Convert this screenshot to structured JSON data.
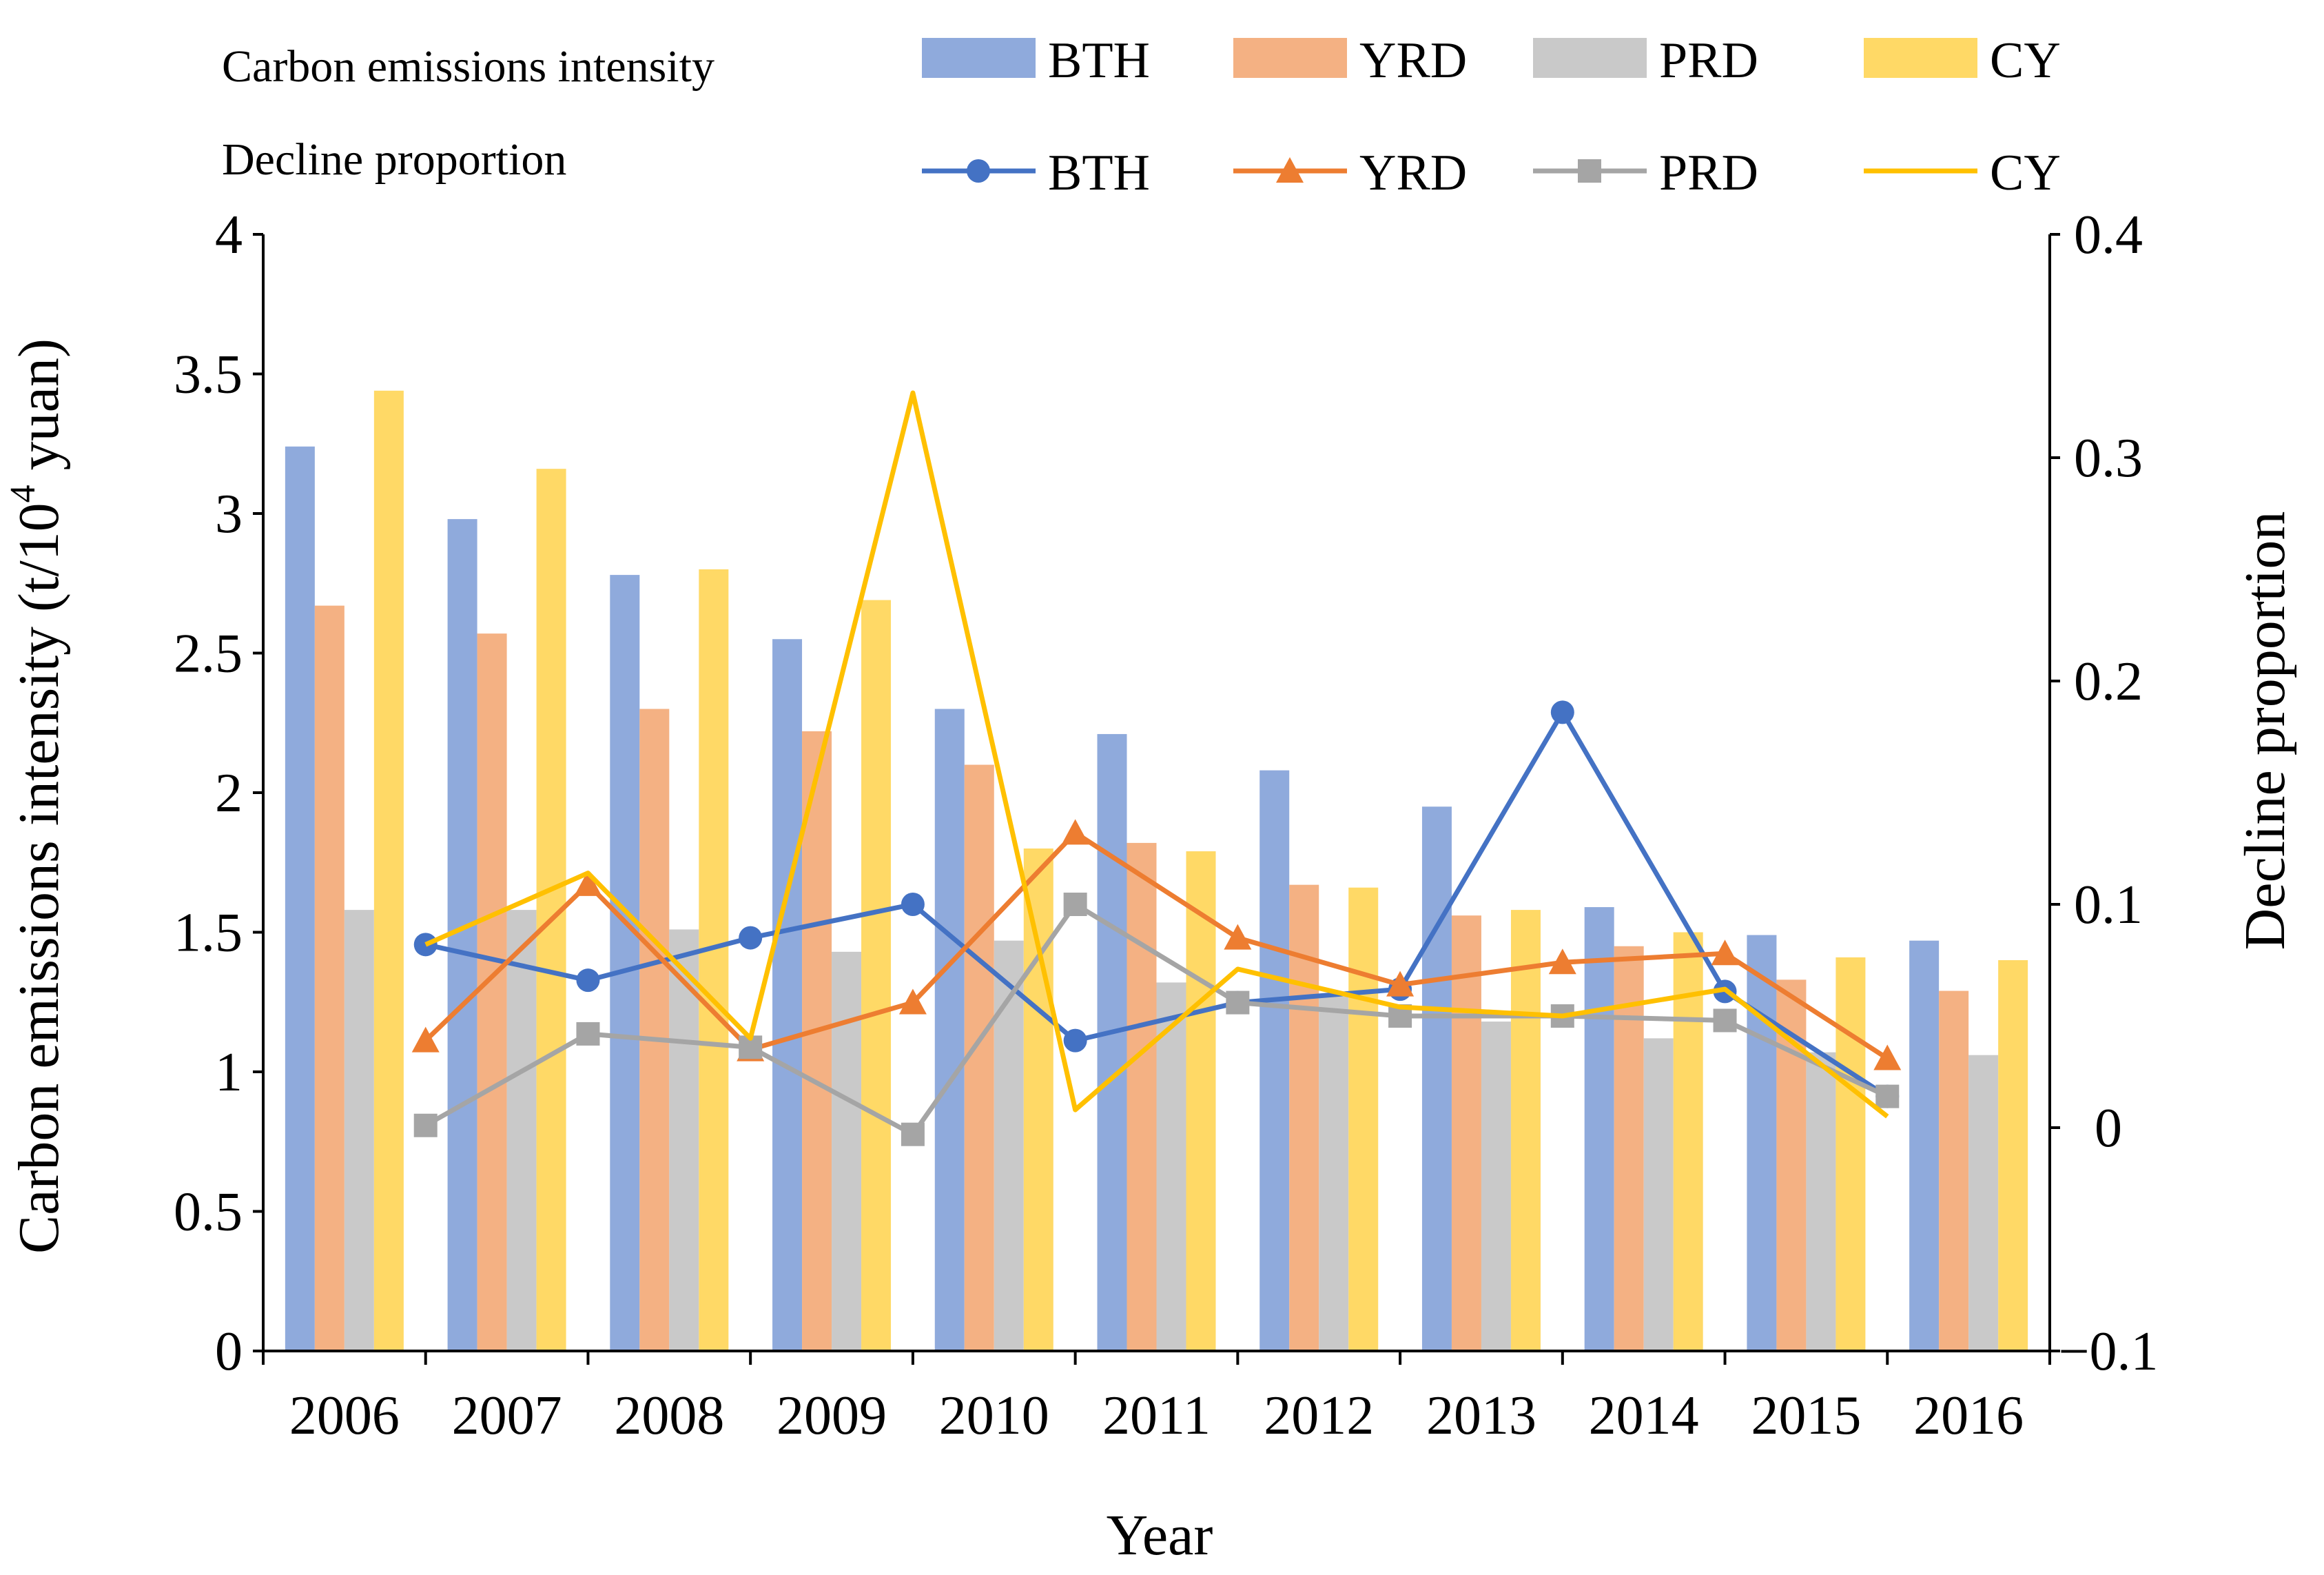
{
  "chart_data": {
    "type": "bar",
    "categories": [
      "2006",
      "2007",
      "2008",
      "2009",
      "2010",
      "2011",
      "2012",
      "2013",
      "2014",
      "2015",
      "2016"
    ],
    "xlabel": "Year",
    "ylabel_main": "Carbon emissions intensity (t/10",
    "ylabel_sup": "4",
    "ylabel_tail": " yuan)",
    "y2label": "Decline proportion",
    "ylim": [
      0,
      4
    ],
    "yticks": [
      "0",
      "0.5",
      "1",
      "1.5",
      "2",
      "2.5",
      "3",
      "3.5",
      "4"
    ],
    "y2lim": [
      -0.1,
      0.4
    ],
    "y2ticks": [
      "−0.1",
      "0",
      "0.1",
      "0.2",
      "0.3",
      "0.4"
    ],
    "legend": {
      "bar_group_title": "Carbon emissions intensity",
      "line_group_title": "Decline proportion",
      "placement": "top"
    },
    "bar_series": [
      {
        "name": "BTH",
        "color": "#8FAADC",
        "values": [
          3.24,
          2.98,
          2.78,
          2.55,
          2.3,
          2.21,
          2.08,
          1.95,
          1.59,
          1.49,
          1.47
        ]
      },
      {
        "name": "YRD",
        "color": "#F4B183",
        "values": [
          2.67,
          2.57,
          2.3,
          2.22,
          2.1,
          1.82,
          1.67,
          1.56,
          1.45,
          1.33,
          1.29
        ]
      },
      {
        "name": "PRD",
        "color": "#C9C9C9",
        "values": [
          1.58,
          1.58,
          1.51,
          1.43,
          1.47,
          1.32,
          1.27,
          1.18,
          1.12,
          1.07,
          1.06
        ]
      },
      {
        "name": "CY",
        "color": "#FFD966",
        "values": [
          3.44,
          3.16,
          2.8,
          2.69,
          1.8,
          1.79,
          1.66,
          1.58,
          1.5,
          1.41,
          1.4
        ]
      }
    ],
    "line_series": [
      {
        "name": "BTH",
        "color": "#4472C4",
        "marker": "circle",
        "x": [
          "2007",
          "2008",
          "2009",
          "2010",
          "2011",
          "2012",
          "2013",
          "2014",
          "2015",
          "2016"
        ],
        "values": [
          0.082,
          0.066,
          0.085,
          0.1,
          0.039,
          0.056,
          0.062,
          0.186,
          0.061,
          0.014
        ]
      },
      {
        "name": "YRD",
        "color": "#ED7D31",
        "marker": "triangle",
        "x": [
          "2007",
          "2008",
          "2009",
          "2010",
          "2011",
          "2012",
          "2013",
          "2014",
          "2015",
          "2016"
        ],
        "values": [
          0.039,
          0.109,
          0.035,
          0.056,
          0.132,
          0.085,
          0.064,
          0.074,
          0.078,
          0.031
        ]
      },
      {
        "name": "PRD",
        "color": "#A5A5A5",
        "marker": "square",
        "x": [
          "2007",
          "2008",
          "2009",
          "2010",
          "2011",
          "2012",
          "2013",
          "2014",
          "2015",
          "2016"
        ],
        "values": [
          0.001,
          0.042,
          0.036,
          -0.003,
          0.1,
          0.056,
          0.05,
          0.05,
          0.048,
          0.014
        ]
      },
      {
        "name": "CY",
        "color": "#FFC000",
        "marker": "none",
        "x": [
          "2007",
          "2008",
          "2009",
          "2010",
          "2011",
          "2012",
          "2013",
          "2014",
          "2015",
          "2016"
        ],
        "values": [
          0.082,
          0.114,
          0.04,
          0.329,
          0.008,
          0.071,
          0.054,
          0.05,
          0.062,
          0.005
        ]
      }
    ]
  }
}
